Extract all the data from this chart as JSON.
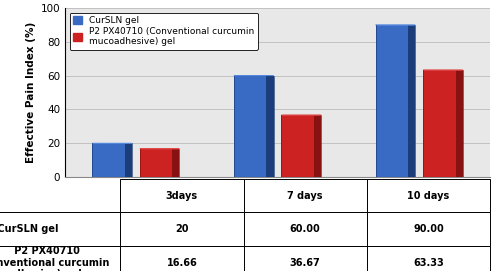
{
  "categories": [
    "3days",
    "7 days",
    "10 days"
  ],
  "series": [
    {
      "label": "CurSLN gel",
      "values": [
        20,
        60.0,
        90.0
      ],
      "color": "#3A6BC4",
      "dark_color": "#1B3D7A",
      "top_color": "#5588DD"
    },
    {
      "label": "P2 PX40710\n(Conventional curcumin\nmucoadhesive) gel",
      "values": [
        16.66,
        36.67,
        63.33
      ],
      "color": "#CC2222",
      "dark_color": "#881111",
      "top_color": "#DD4444"
    }
  ],
  "table_row1": [
    "20",
    "60.00",
    "90.00"
  ],
  "table_row2": [
    "16.66",
    "36.67",
    "63.33"
  ],
  "ylabel": "Effective Pain Index (%)",
  "ylim": [
    0,
    100
  ],
  "yticks": [
    0,
    20,
    40,
    60,
    80,
    100
  ],
  "bar_width": 0.28,
  "background_color": "#ffffff",
  "plot_bg_color": "#f0f0f0",
  "grid_color": "#bbbbbb",
  "label_fontsize": 7.5,
  "tick_fontsize": 7.5,
  "legend_fontsize": 6.5,
  "table_fontsize": 7,
  "x_positions": [
    0.5,
    1.5,
    2.5
  ],
  "xlim": [
    0,
    3.0
  ]
}
